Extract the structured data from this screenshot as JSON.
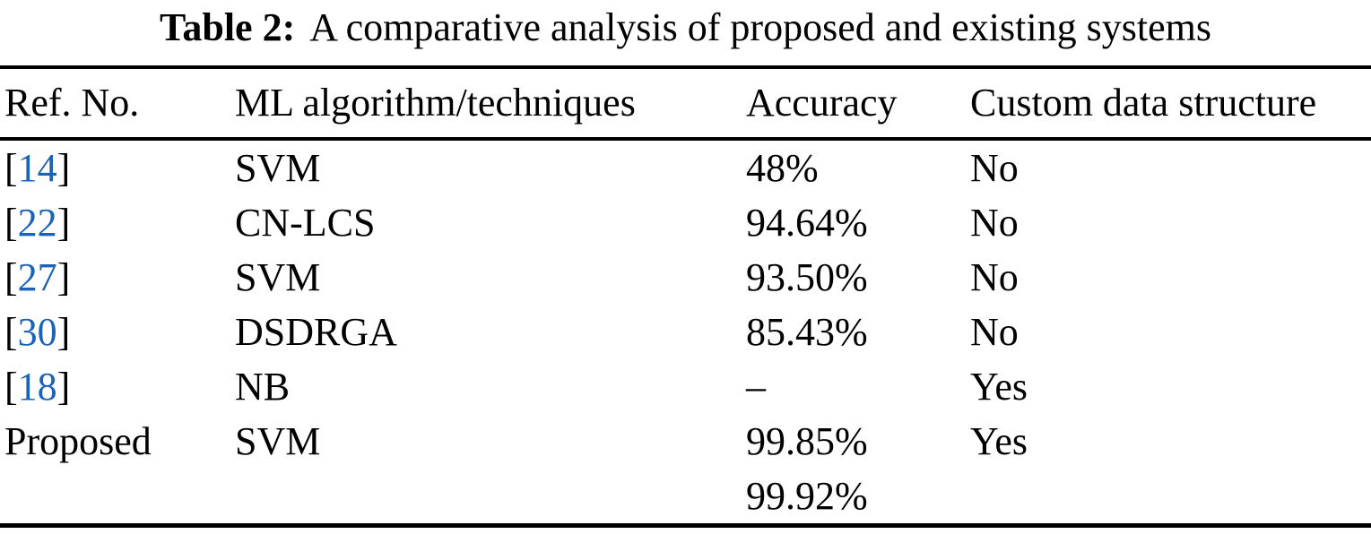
{
  "colors": {
    "background": "#ffffff",
    "text": "#000000",
    "rule": "#000000",
    "citation_link": "#1b63b6"
  },
  "caption": {
    "label": "Table 2:",
    "text": "A comparative analysis of proposed and existing systems"
  },
  "table": {
    "columns": [
      {
        "label": "Ref. No."
      },
      {
        "label": "ML algorithm/techniques"
      },
      {
        "label": "Accuracy"
      },
      {
        "label": "Custom data structure"
      }
    ],
    "rows": [
      {
        "bracket_open": "[",
        "cite": "14",
        "bracket_close": "]",
        "ref_plain": "",
        "algorithm": "SVM",
        "accuracy": "48%",
        "custom": "No"
      },
      {
        "bracket_open": "[",
        "cite": "22",
        "bracket_close": "]",
        "ref_plain": "",
        "algorithm": "CN-LCS",
        "accuracy": "94.64%",
        "custom": "No"
      },
      {
        "bracket_open": "[",
        "cite": "27",
        "bracket_close": "]",
        "ref_plain": "",
        "algorithm": "SVM",
        "accuracy": "93.50%",
        "custom": "No"
      },
      {
        "bracket_open": "[",
        "cite": "30",
        "bracket_close": "]",
        "ref_plain": "",
        "algorithm": "DSDRGA",
        "accuracy": "85.43%",
        "custom": "No"
      },
      {
        "bracket_open": "[",
        "cite": "18",
        "bracket_close": "]",
        "ref_plain": "",
        "algorithm": "NB",
        "accuracy": "–",
        "custom": "Yes"
      },
      {
        "bracket_open": "",
        "cite": "",
        "bracket_close": "",
        "ref_plain": "Proposed",
        "algorithm": "SVM",
        "accuracy": "99.85%",
        "custom": "Yes"
      },
      {
        "bracket_open": "",
        "cite": "",
        "bracket_close": "",
        "ref_plain": "",
        "algorithm": "",
        "accuracy": "99.92%",
        "custom": ""
      }
    ]
  }
}
